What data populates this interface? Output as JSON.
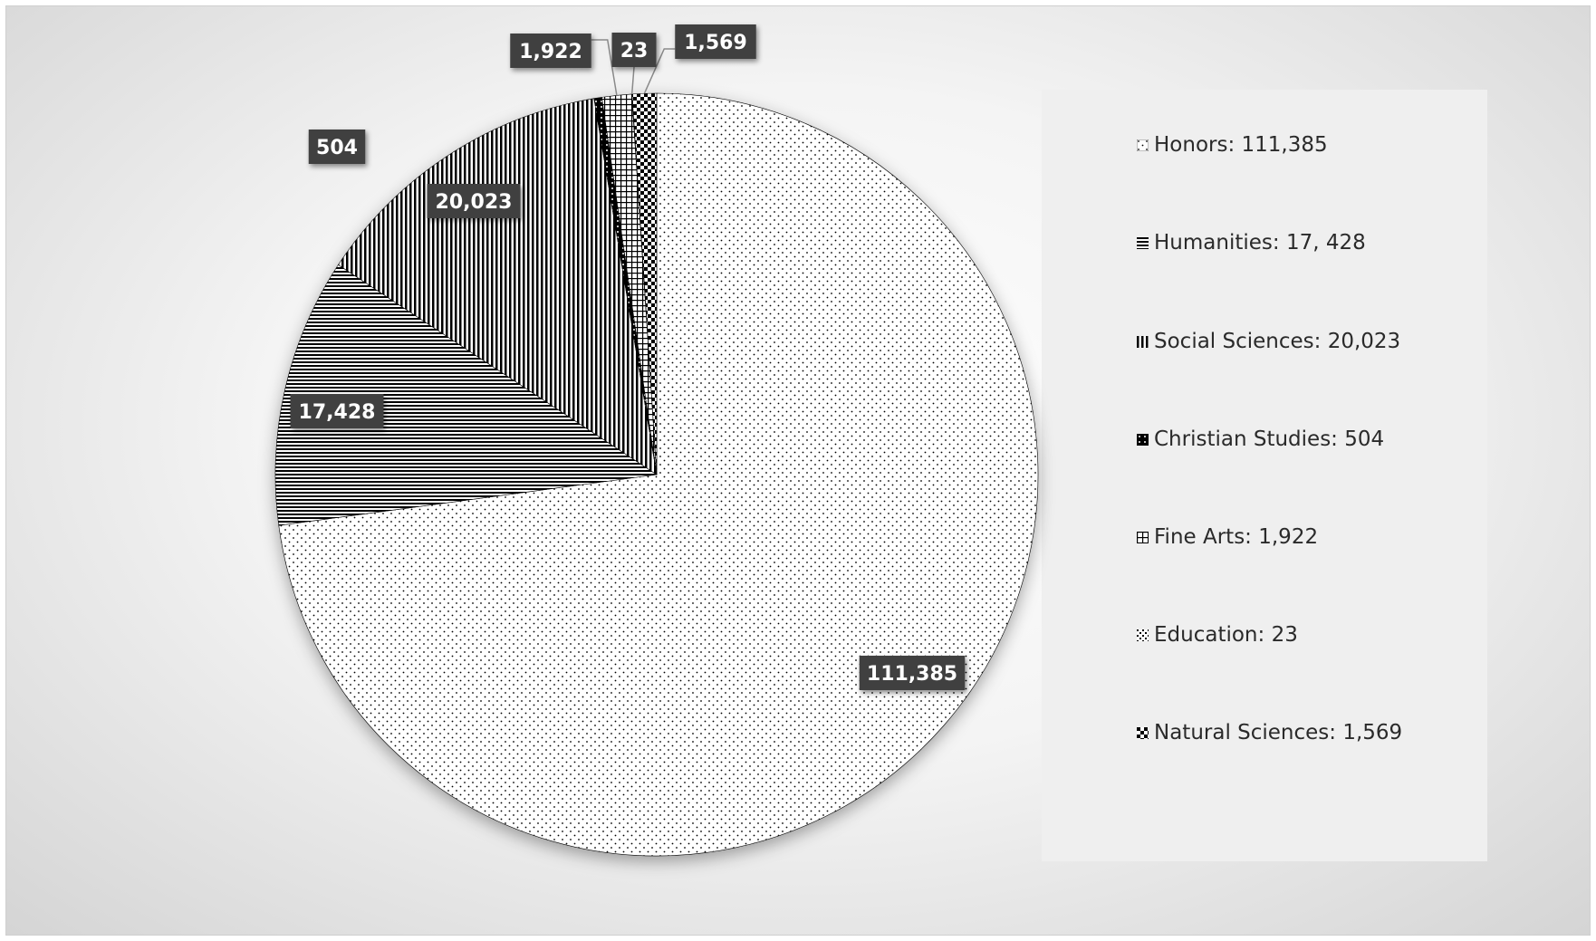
{
  "chart_data": {
    "type": "pie",
    "title": "",
    "legend_position": "right",
    "slices": [
      {
        "category": "Honors",
        "value": 111385,
        "label": "111,385",
        "legend": "Honors: 111,385",
        "pattern": "dots"
      },
      {
        "category": "Humanities",
        "value": 17428,
        "label": "17,428",
        "legend": "Humanities: 17, 428",
        "pattern": "horizontal-lines"
      },
      {
        "category": "Social Sciences",
        "value": 20023,
        "label": "20,023",
        "legend": "Social Sciences: 20,023",
        "pattern": "vertical-lines"
      },
      {
        "category": "Christian Studies",
        "value": 504,
        "label": "504",
        "legend": "Christian Studies: 504",
        "pattern": "dark-diamond"
      },
      {
        "category": "Fine Arts",
        "value": 1922,
        "label": "1,922",
        "legend": "Fine Arts: 1,922",
        "pattern": "grid"
      },
      {
        "category": "Education",
        "value": 23,
        "label": "23",
        "legend": "Education: 23",
        "pattern": "light-checker"
      },
      {
        "category": "Natural Sciences",
        "value": 1569,
        "label": "1,569",
        "legend": "Natural Sciences: 1,569",
        "pattern": "checker"
      }
    ]
  },
  "colors": {
    "stroke": "#000000",
    "label_bg": "#404040",
    "label_text": "#ffffff"
  }
}
